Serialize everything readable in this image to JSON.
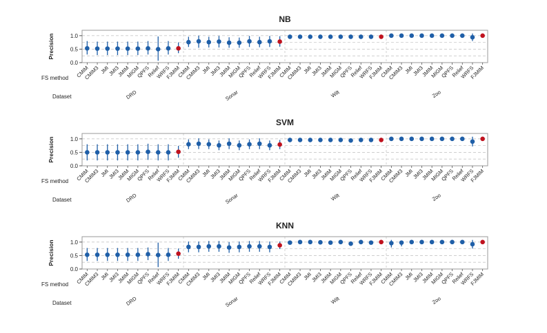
{
  "chart_data": {
    "type": "scatter",
    "subtype": "interval-plot",
    "ylabel": "Precision",
    "row_labels": {
      "method": "FS method",
      "dataset": "Dataset"
    },
    "ylim": [
      0.0,
      1.2
    ],
    "yticks": [
      "1.0",
      "0.5",
      "0.0"
    ],
    "grid": true,
    "colors": {
      "point": "#1f5fa8",
      "highlight": "#c0121e",
      "grid": "#c8c8c8",
      "frame": "#9a9a9a"
    },
    "datasets": [
      {
        "name": "DRD",
        "methods": [
          "CMIM",
          "CMIM3",
          "JMI",
          "JMI3",
          "JMIM",
          "MIGM",
          "QPFS",
          "Relief",
          "WRFS",
          "FJMIM"
        ]
      },
      {
        "name": "Sonar",
        "methods": [
          "CMIM",
          "CMIM3",
          "JMI",
          "JMI3",
          "JMIM",
          "MIGM",
          "QPFS",
          "Relief",
          "WRFS",
          "FJMIM"
        ]
      },
      {
        "name": "Wilt",
        "methods": [
          "CMIM",
          "CMIM3",
          "JMI",
          "JMI3",
          "JMIM",
          "MIGM",
          "QPFS",
          "Relief",
          "WRFS",
          "FJMIM"
        ]
      },
      {
        "name": "Zoo",
        "methods": [
          "CMIM",
          "CMIM3",
          "JMI",
          "JMI3",
          "JMIM",
          "MIGM",
          "QPFS",
          "Relief",
          "WRFS",
          "FJMIM"
        ]
      }
    ],
    "highlight_method": "FJMIM",
    "panels": [
      {
        "title": "NB",
        "mean": [
          0.53,
          0.52,
          0.52,
          0.52,
          0.52,
          0.52,
          0.53,
          0.5,
          0.53,
          0.53,
          0.76,
          0.79,
          0.76,
          0.78,
          0.74,
          0.74,
          0.79,
          0.76,
          0.79,
          0.78,
          0.96,
          0.96,
          0.96,
          0.96,
          0.96,
          0.96,
          0.96,
          0.96,
          0.96,
          0.96,
          1.0,
          1.0,
          1.0,
          1.0,
          1.0,
          1.0,
          1.0,
          1.0,
          0.94,
          1.0
        ],
        "lower": [
          0.3,
          0.28,
          0.28,
          0.28,
          0.28,
          0.28,
          0.3,
          0.07,
          0.3,
          0.35,
          0.58,
          0.55,
          0.56,
          0.56,
          0.55,
          0.55,
          0.58,
          0.57,
          0.58,
          0.59,
          0.94,
          0.94,
          0.94,
          0.94,
          0.94,
          0.94,
          0.94,
          0.94,
          0.94,
          0.94,
          0.99,
          0.99,
          0.99,
          0.99,
          0.99,
          0.99,
          0.99,
          0.99,
          0.8,
          0.99
        ],
        "upper": [
          0.8,
          0.78,
          0.78,
          0.78,
          0.78,
          0.78,
          0.8,
          0.97,
          0.8,
          0.75,
          0.96,
          1.0,
          0.96,
          0.99,
          0.94,
          0.93,
          0.99,
          0.96,
          0.99,
          0.98,
          0.98,
          0.98,
          0.98,
          0.98,
          0.98,
          0.98,
          0.98,
          0.98,
          0.98,
          0.98,
          1.01,
          1.01,
          1.01,
          1.01,
          1.01,
          1.01,
          1.01,
          1.01,
          1.08,
          1.01
        ]
      },
      {
        "title": "SVM",
        "mean": [
          0.5,
          0.5,
          0.5,
          0.5,
          0.5,
          0.5,
          0.52,
          0.5,
          0.5,
          0.52,
          0.8,
          0.82,
          0.8,
          0.76,
          0.82,
          0.76,
          0.8,
          0.82,
          0.76,
          0.79,
          0.96,
          0.96,
          0.96,
          0.96,
          0.96,
          0.96,
          0.94,
          0.96,
          0.96,
          0.96,
          1.0,
          1.0,
          1.0,
          1.0,
          1.0,
          1.0,
          1.0,
          1.0,
          0.9,
          1.0
        ],
        "lower": [
          0.2,
          0.2,
          0.2,
          0.2,
          0.2,
          0.2,
          0.22,
          0.2,
          0.2,
          0.3,
          0.62,
          0.62,
          0.62,
          0.58,
          0.62,
          0.58,
          0.62,
          0.62,
          0.58,
          0.62,
          0.94,
          0.94,
          0.94,
          0.94,
          0.94,
          0.94,
          0.92,
          0.94,
          0.94,
          0.94,
          0.99,
          0.99,
          0.99,
          0.99,
          0.99,
          0.99,
          0.99,
          0.99,
          0.72,
          0.99
        ],
        "upper": [
          0.8,
          0.8,
          0.8,
          0.8,
          0.8,
          0.8,
          0.82,
          0.8,
          0.8,
          0.74,
          0.98,
          1.02,
          0.98,
          0.94,
          1.02,
          0.94,
          0.98,
          1.02,
          0.94,
          0.96,
          0.98,
          0.98,
          0.98,
          0.98,
          0.98,
          0.98,
          0.96,
          0.98,
          0.98,
          0.98,
          1.01,
          1.01,
          1.01,
          1.01,
          1.01,
          1.01,
          1.01,
          1.01,
          1.08,
          1.01
        ]
      },
      {
        "title": "KNN",
        "mean": [
          0.53,
          0.53,
          0.53,
          0.53,
          0.53,
          0.53,
          0.55,
          0.52,
          0.53,
          0.57,
          0.82,
          0.82,
          0.84,
          0.84,
          0.8,
          0.82,
          0.84,
          0.84,
          0.82,
          0.88,
          0.98,
          1.0,
          1.0,
          0.99,
          0.98,
          1.0,
          0.94,
          1.0,
          0.98,
          1.0,
          0.96,
          0.98,
          1.0,
          1.0,
          1.0,
          1.0,
          1.0,
          1.0,
          0.92,
          1.0
        ],
        "lower": [
          0.3,
          0.3,
          0.3,
          0.3,
          0.3,
          0.3,
          0.33,
          0.07,
          0.3,
          0.38,
          0.62,
          0.62,
          0.64,
          0.64,
          0.6,
          0.62,
          0.64,
          0.64,
          0.62,
          0.74,
          0.96,
          0.98,
          0.98,
          0.97,
          0.96,
          0.98,
          0.92,
          0.98,
          0.96,
          0.98,
          0.8,
          0.84,
          0.98,
          0.98,
          0.98,
          0.98,
          0.98,
          0.98,
          0.76,
          0.99
        ],
        "upper": [
          0.78,
          0.78,
          0.78,
          0.78,
          0.78,
          0.78,
          0.8,
          0.98,
          0.78,
          0.76,
          1.02,
          1.02,
          1.04,
          1.04,
          1.0,
          1.02,
          1.04,
          1.04,
          1.02,
          1.02,
          1.0,
          1.02,
          1.02,
          1.01,
          1.0,
          1.02,
          0.96,
          1.02,
          1.0,
          1.02,
          1.08,
          1.06,
          1.02,
          1.02,
          1.02,
          1.02,
          1.02,
          1.02,
          1.08,
          1.01
        ]
      }
    ]
  }
}
